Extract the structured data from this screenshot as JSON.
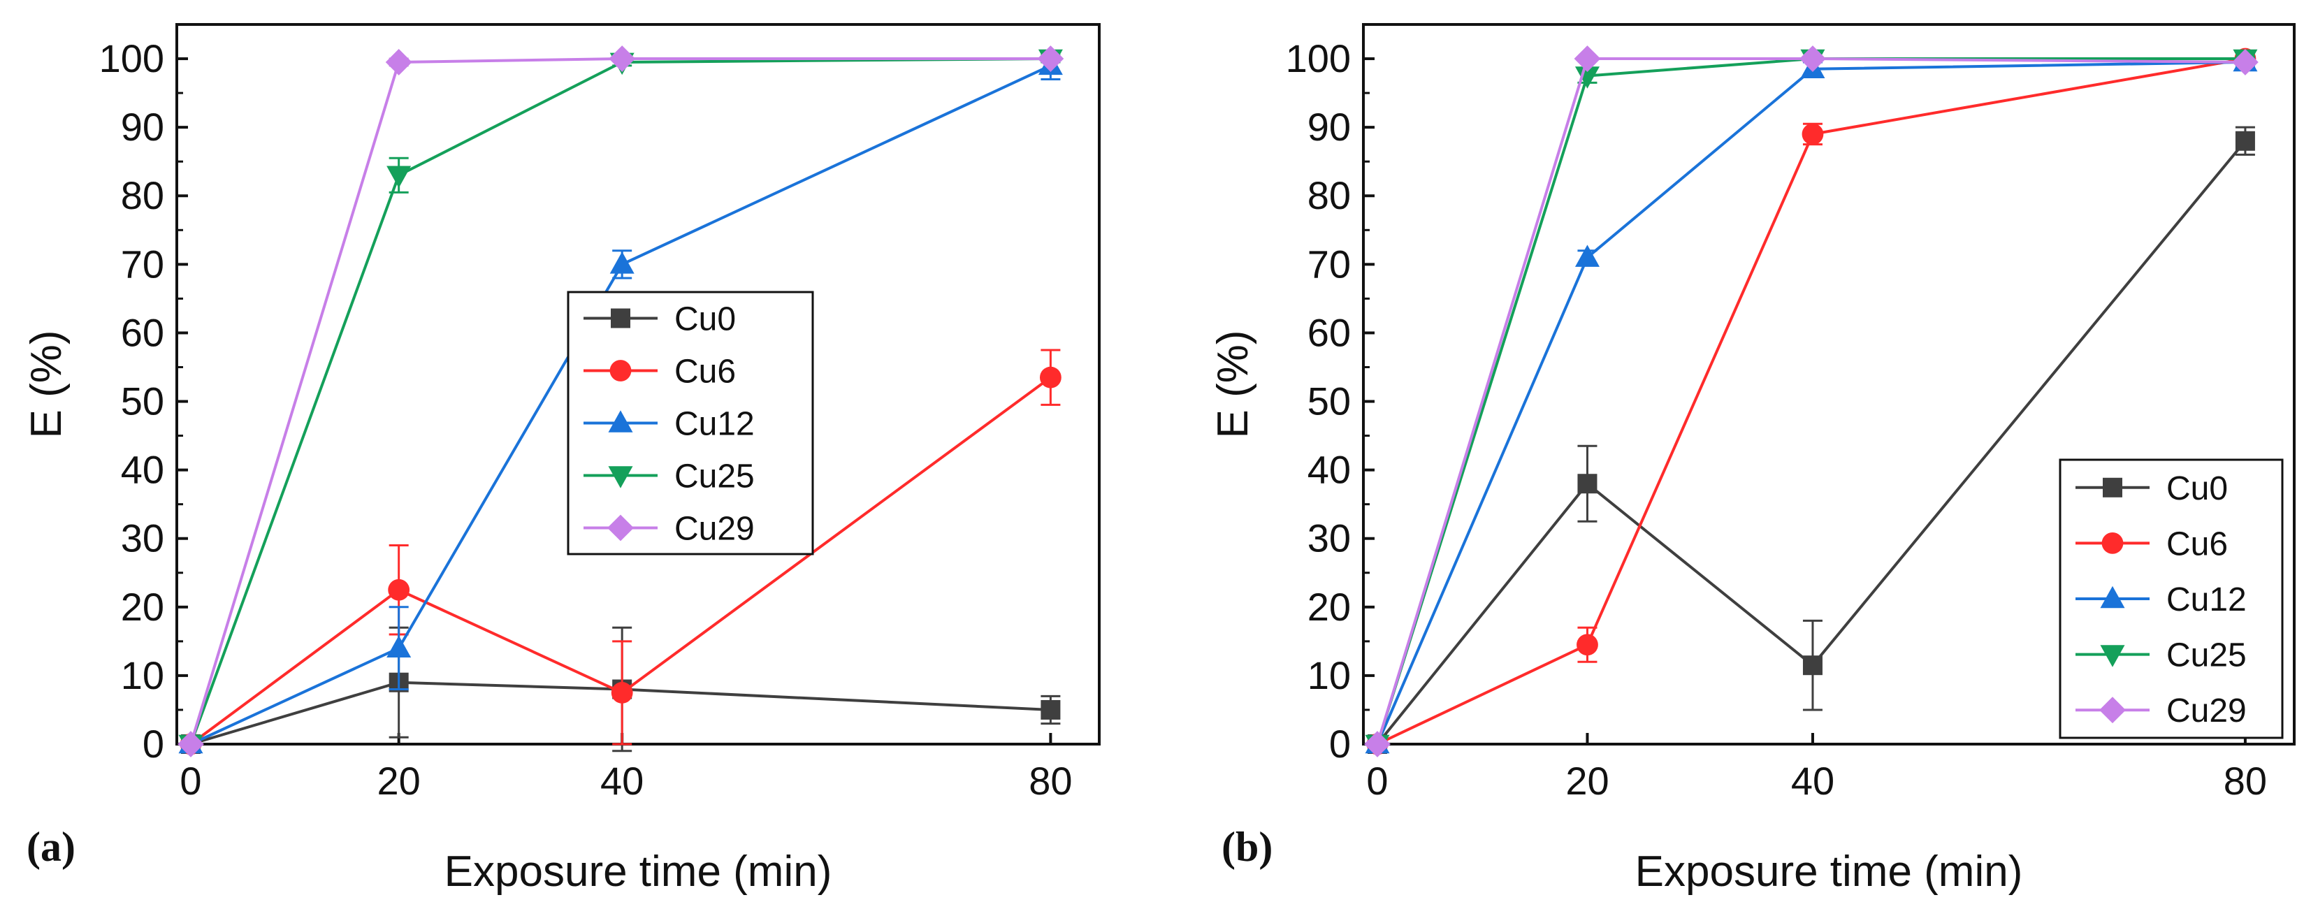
{
  "chart_data": [
    {
      "type": "line",
      "panel_label": "(a)",
      "xlabel": "Exposure time (min)",
      "ylabel": "E (%)",
      "x": [
        0,
        20,
        40,
        80
      ],
      "x_ticks": [
        "0",
        "20",
        "40",
        "80"
      ],
      "y_ticks": [
        "0",
        "10",
        "20",
        "30",
        "40",
        "50",
        "60",
        "70",
        "80",
        "90",
        "100"
      ],
      "ylim": [
        0,
        105
      ],
      "legend_position": "center-right",
      "series": [
        {
          "name": "Cu0",
          "color": "#3f3f3f",
          "marker": "square",
          "values": [
            0,
            9,
            8,
            5
          ],
          "errors": [
            0,
            8,
            9,
            2
          ]
        },
        {
          "name": "Cu6",
          "color": "#ff2b2b",
          "marker": "circle",
          "values": [
            0,
            22.5,
            7.5,
            53.5
          ],
          "errors": [
            0,
            6.5,
            7.5,
            4
          ]
        },
        {
          "name": "Cu12",
          "color": "#1a73d9",
          "marker": "triangle-up",
          "values": [
            0,
            14,
            70,
            99
          ],
          "errors": [
            0,
            6,
            2,
            2
          ]
        },
        {
          "name": "Cu25",
          "color": "#14a05a",
          "marker": "triangle-down",
          "values": [
            0,
            83,
            99.5,
            100
          ],
          "errors": [
            0,
            2.5,
            0.5,
            0.5
          ]
        },
        {
          "name": "Cu29",
          "color": "#c77fe8",
          "marker": "diamond",
          "values": [
            0,
            99.5,
            100,
            100
          ],
          "errors": [
            0,
            0.5,
            0.3,
            0.3
          ]
        }
      ]
    },
    {
      "type": "line",
      "panel_label": "(b)",
      "xlabel": "Exposure time (min)",
      "ylabel": "E (%)",
      "x": [
        0,
        20,
        40,
        80
      ],
      "x_ticks": [
        "0",
        "20",
        "40",
        "80"
      ],
      "y_ticks": [
        "0",
        "10",
        "20",
        "30",
        "40",
        "50",
        "60",
        "70",
        "80",
        "90",
        "100"
      ],
      "ylim": [
        0,
        105
      ],
      "legend_position": "bottom-right",
      "series": [
        {
          "name": "Cu0",
          "color": "#3f3f3f",
          "marker": "square",
          "values": [
            0,
            38,
            11.5,
            88
          ],
          "errors": [
            0,
            5.5,
            6.5,
            2
          ]
        },
        {
          "name": "Cu6",
          "color": "#ff2b2b",
          "marker": "circle",
          "values": [
            0,
            14.5,
            89,
            100
          ],
          "errors": [
            0,
            2.5,
            1.5,
            0.5
          ]
        },
        {
          "name": "Cu12",
          "color": "#1a73d9",
          "marker": "triangle-up",
          "values": [
            0,
            71,
            98.5,
            99.5
          ],
          "errors": [
            0,
            1,
            1,
            0.5
          ]
        },
        {
          "name": "Cu25",
          "color": "#14a05a",
          "marker": "triangle-down",
          "values": [
            0,
            97.5,
            100,
            100
          ],
          "errors": [
            0,
            1,
            0.3,
            0.3
          ]
        },
        {
          "name": "Cu29",
          "color": "#c77fe8",
          "marker": "diamond",
          "values": [
            0,
            100,
            100,
            99.5
          ],
          "errors": [
            0,
            0.3,
            0.3,
            0.3
          ]
        }
      ]
    }
  ]
}
